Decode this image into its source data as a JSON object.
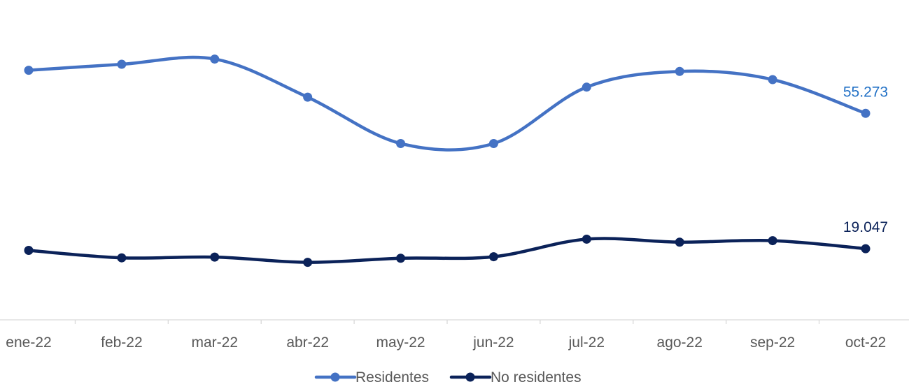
{
  "chart_data": {
    "type": "line",
    "title": "",
    "xlabel": "",
    "ylabel": "",
    "categories": [
      "ene-22",
      "feb-22",
      "mar-22",
      "abr-22",
      "may-22",
      "jun-22",
      "jul-22",
      "ago-22",
      "sep-22",
      "oct-22"
    ],
    "series": [
      {
        "name": "Residentes",
        "color": "#4472C4",
        "values": [
          66800,
          68400,
          69800,
          59600,
          47200,
          47200,
          62300,
          66500,
          64300,
          55273
        ],
        "last_label": "55.273",
        "label_color": "#1F6FC5"
      },
      {
        "name": "No residentes",
        "color": "#0B2259",
        "values": [
          18600,
          16600,
          16800,
          15400,
          16500,
          16900,
          21600,
          20800,
          21200,
          19047
        ],
        "last_label": "19.047",
        "label_color": "#0B2259"
      }
    ],
    "ylim": [
      0,
      80000
    ],
    "grid": false,
    "legend": "bottom",
    "smooth": true
  }
}
